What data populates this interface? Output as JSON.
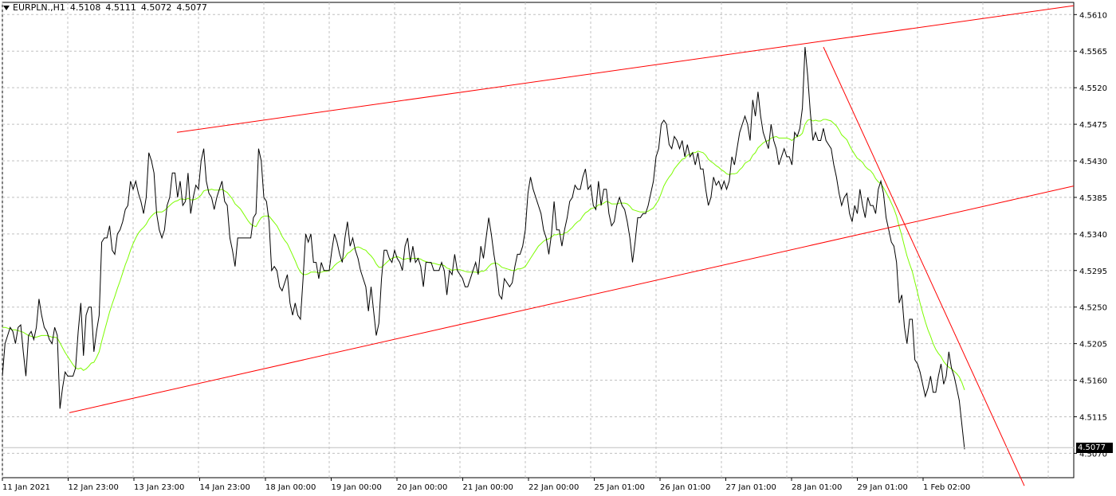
{
  "header": {
    "symbol": "EURPLN.,H1",
    "open": "4.5108",
    "high": "4.5111",
    "low": "4.5072",
    "close": "4.5077"
  },
  "current_price_label": "4.5077",
  "colors": {
    "price_line": "#000000",
    "ma_line": "#7CFC00",
    "trend_lines": "#FF0000",
    "grid": "#C0C0C0",
    "background": "#FFFFFF"
  },
  "chart_data": {
    "type": "line",
    "title": "EURPLN.,H1",
    "grid": true,
    "ylim": [
      4.504,
      4.5625
    ],
    "y_ticks": [
      "4.5610",
      "4.5565",
      "4.5520",
      "4.5475",
      "4.5430",
      "4.5385",
      "4.5340",
      "4.5295",
      "4.5250",
      "4.5205",
      "4.5160",
      "4.5115",
      "4.5070"
    ],
    "x_ticks": [
      "11 Jan 2021",
      "12 Jan 23:00",
      "13 Jan 23:00",
      "14 Jan 23:00",
      "18 Jan 00:00",
      "19 Jan 00:00",
      "20 Jan 00:00",
      "21 Jan 00:00",
      "22 Jan 00:00",
      "25 Jan 01:00",
      "26 Jan 01:00",
      "27 Jan 01:00",
      "28 Jan 01:00",
      "29 Jan 01:00",
      "1 Feb 02:00"
    ],
    "series": [
      {
        "type": "price",
        "values": [
          4.5165,
          4.5205,
          4.5215,
          4.5225,
          4.522,
          4.5205,
          4.5225,
          4.5228,
          4.5195,
          4.5165,
          4.5215,
          4.522,
          4.521,
          4.5225,
          4.526,
          4.524,
          4.5225,
          4.522,
          4.521,
          4.5205,
          4.5225,
          4.5215,
          4.5125,
          4.515,
          4.517,
          4.5165,
          4.5165,
          4.5165,
          4.5175,
          4.522,
          4.5255,
          4.519,
          4.524,
          4.525,
          4.525,
          4.5195,
          4.522,
          4.524,
          4.533,
          4.5335,
          4.5335,
          4.535,
          4.532,
          4.5315,
          4.534,
          4.5345,
          4.5355,
          4.537,
          4.5375,
          4.5405,
          4.5395,
          4.5405,
          4.539,
          4.538,
          4.5365,
          4.5385,
          4.544,
          4.543,
          4.5415,
          4.5365,
          4.5345,
          4.5335,
          4.5345,
          4.5375,
          4.5385,
          4.5415,
          4.5415,
          4.5385,
          4.5405,
          4.5375,
          4.538,
          4.5415,
          4.5365,
          4.5385,
          4.54,
          4.5395,
          4.543,
          4.5445,
          4.5405,
          4.539,
          4.5385,
          4.537,
          4.5385,
          4.5395,
          4.5405,
          4.538,
          4.5375,
          4.5335,
          4.532,
          4.53,
          4.5335,
          4.5335,
          4.5335,
          4.5335,
          4.5335,
          4.5335,
          4.536,
          4.5365,
          4.5445,
          4.543,
          4.5385,
          4.538,
          4.5355,
          4.5295,
          4.53,
          4.5295,
          4.5275,
          4.527,
          4.528,
          4.529,
          4.5255,
          4.524,
          4.5255,
          4.524,
          4.5235,
          4.5285,
          4.534,
          4.533,
          4.534,
          4.5305,
          4.5305,
          4.5285,
          4.5305,
          4.5295,
          4.5295,
          4.5295,
          4.532,
          4.534,
          4.533,
          4.5315,
          4.5305,
          4.5335,
          4.5355,
          4.5325,
          4.5335,
          4.532,
          4.531,
          4.5295,
          4.5285,
          4.5275,
          4.5245,
          4.5275,
          4.5245,
          4.5215,
          4.523,
          4.5285,
          4.532,
          4.532,
          4.531,
          4.5305,
          4.532,
          4.531,
          4.5305,
          4.5295,
          4.5325,
          4.5335,
          4.5305,
          4.5325,
          4.5305,
          4.531,
          4.53,
          4.5275,
          4.5305,
          4.5305,
          4.5305,
          4.5295,
          4.5295,
          4.5295,
          4.5305,
          4.5295,
          4.5265,
          4.5295,
          4.529,
          4.5315,
          4.5295,
          4.529,
          4.5285,
          4.5275,
          4.5275,
          4.5285,
          4.5295,
          4.5305,
          4.529,
          4.5325,
          4.531,
          4.5335,
          4.536,
          4.534,
          4.5315,
          4.5295,
          4.5265,
          4.526,
          4.5285,
          4.528,
          4.5275,
          4.528,
          4.53,
          4.5315,
          4.5315,
          4.5325,
          4.5345,
          4.539,
          4.541,
          4.5395,
          4.5385,
          4.5375,
          4.5365,
          4.5345,
          4.5335,
          4.5315,
          4.534,
          4.538,
          4.5345,
          4.5345,
          4.5325,
          4.5345,
          4.536,
          4.538,
          4.5385,
          4.54,
          4.5395,
          4.5395,
          4.541,
          4.542,
          4.5395,
          4.54,
          4.5375,
          4.537,
          4.5405,
          4.5375,
          4.5395,
          4.5395,
          4.5365,
          4.535,
          4.5355,
          4.5375,
          4.5385,
          4.5375,
          4.537,
          4.5355,
          4.5335,
          4.5305,
          4.533,
          4.536,
          4.536,
          4.5365,
          4.5365,
          4.5375,
          4.539,
          4.5405,
          4.5435,
          4.5445,
          4.5475,
          4.548,
          4.5475,
          4.545,
          4.5445,
          4.546,
          4.5455,
          4.5445,
          4.5455,
          4.5435,
          4.545,
          4.5435,
          4.544,
          4.5425,
          4.544,
          4.542,
          4.542,
          4.5395,
          4.5375,
          4.5385,
          4.541,
          4.54,
          4.5405,
          4.5395,
          4.5405,
          4.5395,
          4.5405,
          4.5435,
          4.5425,
          4.5445,
          4.5465,
          4.5475,
          4.5485,
          4.5475,
          4.5455,
          4.5505,
          4.5485,
          4.5515,
          4.5485,
          4.5465,
          4.5455,
          4.5445,
          4.5475,
          4.5455,
          4.5445,
          4.5425,
          4.5435,
          4.5445,
          4.5435,
          4.5435,
          4.5425,
          4.5465,
          4.546,
          4.547,
          4.5495,
          4.557,
          4.5535,
          4.549,
          4.5455,
          4.5465,
          4.5455,
          4.5455,
          4.547,
          4.5455,
          4.545,
          4.5445,
          4.5425,
          4.541,
          4.539,
          4.5375,
          4.5385,
          4.539,
          4.5365,
          4.5355,
          4.5375,
          4.5365,
          4.5395,
          4.5375,
          4.536,
          4.5385,
          4.5375,
          4.5375,
          4.5365,
          4.5395,
          4.5405,
          4.539,
          4.536,
          4.5345,
          4.533,
          4.5325,
          4.5305,
          4.5255,
          4.5265,
          4.5225,
          4.5205,
          4.5235,
          4.5235,
          4.5185,
          4.518,
          4.517,
          4.5155,
          4.514,
          4.515,
          4.5165,
          4.5145,
          4.5145,
          4.5165,
          4.518,
          4.5155,
          4.5165,
          4.5195,
          4.5175,
          4.5165,
          4.515,
          4.5135,
          4.5105,
          4.5075
        ],
        "name": ""
      },
      {
        "type": "moving_average",
        "values": [
          4.5225,
          4.5225,
          4.5224,
          4.5223,
          4.5222,
          4.5222,
          4.5221,
          4.522,
          4.5219,
          4.5217,
          4.5215,
          4.5214,
          4.5213,
          4.5213,
          4.5214,
          4.5215,
          4.5215,
          4.5215,
          4.5214,
          4.5213,
          4.5213,
          4.5212,
          4.5206,
          4.52,
          4.5194,
          4.5189,
          4.5184,
          4.5179,
          4.5175,
          4.5174,
          4.5175,
          4.5172,
          4.5174,
          4.5177,
          4.5181,
          4.5182,
          4.5188,
          4.5195,
          4.5208,
          4.522,
          4.5232,
          4.5244,
          4.5254,
          4.5263,
          4.5273,
          4.5282,
          4.5292,
          4.5302,
          4.531,
          4.532,
          4.5328,
          4.5335,
          4.5341,
          4.5345,
          4.5348,
          4.5352,
          4.5358,
          4.5362,
          4.5365,
          4.5367,
          4.5367,
          4.5367,
          4.5369,
          4.5372,
          4.5375,
          4.5378,
          4.538,
          4.5381,
          4.5383,
          4.5383,
          4.5382,
          4.5384,
          4.5382,
          4.5382,
          4.5383,
          4.5385,
          4.5388,
          4.5393,
          4.5394,
          4.5394,
          4.5395,
          4.5394,
          4.5394,
          4.5394,
          4.5395,
          4.5393,
          4.5391,
          4.5387,
          4.5383,
          4.5377,
          4.5374,
          4.5371,
          4.5366,
          4.5361,
          4.5356,
          4.5352,
          4.535,
          4.5349,
          4.5355,
          4.536,
          4.5362,
          4.5362,
          4.5362,
          4.5358,
          4.5354,
          4.535,
          4.5344,
          4.5337,
          4.5332,
          4.5328,
          4.5321,
          4.5314,
          4.5307,
          4.5299,
          4.5293,
          4.529,
          4.529,
          4.5291,
          4.5293,
          4.5293,
          4.5293,
          4.5292,
          4.5293,
          4.5294,
          4.5294,
          4.5295,
          4.5297,
          4.5301,
          4.5304,
          4.5306,
          4.5308,
          4.5311,
          4.5316,
          4.5318,
          4.5321,
          4.5323,
          4.5324,
          4.5323,
          4.5321,
          4.532,
          4.5316,
          4.5313,
          4.5309,
          4.5303,
          4.5299,
          4.5299,
          4.5302,
          4.5305,
          4.5308,
          4.531,
          4.5311,
          4.5312,
          4.5311,
          4.5309,
          4.5309,
          4.531,
          4.5309,
          4.531,
          4.531,
          4.531,
          4.5309,
          4.5307,
          4.5306,
          4.5305,
          4.5304,
          4.5304,
          4.5303,
          4.5302,
          4.5302,
          4.5301,
          4.5298,
          4.5297,
          4.5295,
          4.5296,
          4.5296,
          4.5296,
          4.5295,
          4.5294,
          4.5293,
          4.5293,
          4.5293,
          4.5293,
          4.5292,
          4.5294,
          4.5294,
          4.5296,
          4.53,
          4.5303,
          4.5304,
          4.5304,
          4.5302,
          4.5299,
          4.5298,
          4.5297,
          4.5296,
          4.5295,
          4.5295,
          4.5297,
          4.5297,
          4.5298,
          4.53,
          4.5305,
          4.531,
          4.5315,
          4.532,
          4.5325,
          4.5328,
          4.5331,
          4.5333,
          4.5334,
          4.5336,
          4.5339,
          4.5339,
          4.534,
          4.5339,
          4.5341,
          4.5342,
          4.5345,
          4.5348,
          4.5352,
          4.5355,
          4.5357,
          4.5362,
          4.5366,
          4.5368,
          4.5371,
          4.5372,
          4.5373,
          4.5376,
          4.5376,
          4.5378,
          4.538,
          4.5379,
          4.5377,
          4.5377,
          4.5377,
          4.5378,
          4.5378,
          4.5378,
          4.5377,
          4.5374,
          4.537,
          4.5369,
          4.5368,
          4.5367,
          4.5367,
          4.5367,
          4.5368,
          4.537,
          4.5372,
          4.5377,
          4.5382,
          4.539,
          4.5399,
          4.5405,
          4.541,
          4.5414,
          4.542,
          4.5424,
          4.5428,
          4.5432,
          4.5433,
          4.5437,
          4.5438,
          4.544,
          4.544,
          4.5442,
          4.5441,
          4.544,
          4.5437,
          4.5432,
          4.5429,
          4.5427,
          4.5424,
          4.5422,
          4.5419,
          4.5417,
          4.5414,
          4.5413,
          4.5414,
          4.5414,
          4.5415,
          4.5419,
          4.5422,
          4.5427,
          4.5429,
          4.5431,
          4.5437,
          4.544,
          4.5446,
          4.5449,
          4.5452,
          4.5454,
          4.5455,
          4.5458,
          4.5459,
          4.546,
          4.5458,
          4.5458,
          4.5458,
          4.5458,
          4.5457,
          4.5455,
          4.5458,
          4.546,
          4.5461,
          4.5464,
          4.5475,
          4.548,
          4.5481,
          4.5479,
          4.548,
          4.5479,
          4.5479,
          4.5481,
          4.5481,
          4.548,
          4.5479,
          4.5476,
          4.5473,
          4.5468,
          4.5462,
          4.5459,
          4.5456,
          4.5449,
          4.5443,
          4.5438,
          4.5433,
          4.5431,
          4.5428,
          4.5423,
          4.542,
          4.5418,
          4.5414,
          4.5408,
          4.5404,
          4.5402,
          4.5397,
          4.5391,
          4.5385,
          4.5378,
          4.5371,
          4.5362,
          4.5349,
          4.5338,
          4.5325,
          4.5313,
          4.5303,
          4.5294,
          4.5281,
          4.5268,
          4.5255,
          4.5243,
          4.5232,
          4.5222,
          4.5214,
          4.5205,
          4.5198,
          4.5193,
          4.5189,
          4.5183,
          4.5179,
          4.5176,
          4.5174,
          4.5171,
          4.5168,
          4.5164,
          4.5157,
          4.5148
        ],
        "name": ""
      }
    ],
    "trend_lines": [
      {
        "from": [
          "13 Jan 23:00",
          4.5465
        ],
        "to": [
          "right_edge",
          4.5621
        ]
      },
      {
        "from": [
          "12 Jan 23:00",
          4.512
        ],
        "to": [
          "right_edge",
          4.5399
        ]
      },
      {
        "from": [
          "28 Jan 01:00",
          4.557
        ],
        "to": [
          "1 Feb 02:00+",
          4.503
        ]
      }
    ]
  }
}
